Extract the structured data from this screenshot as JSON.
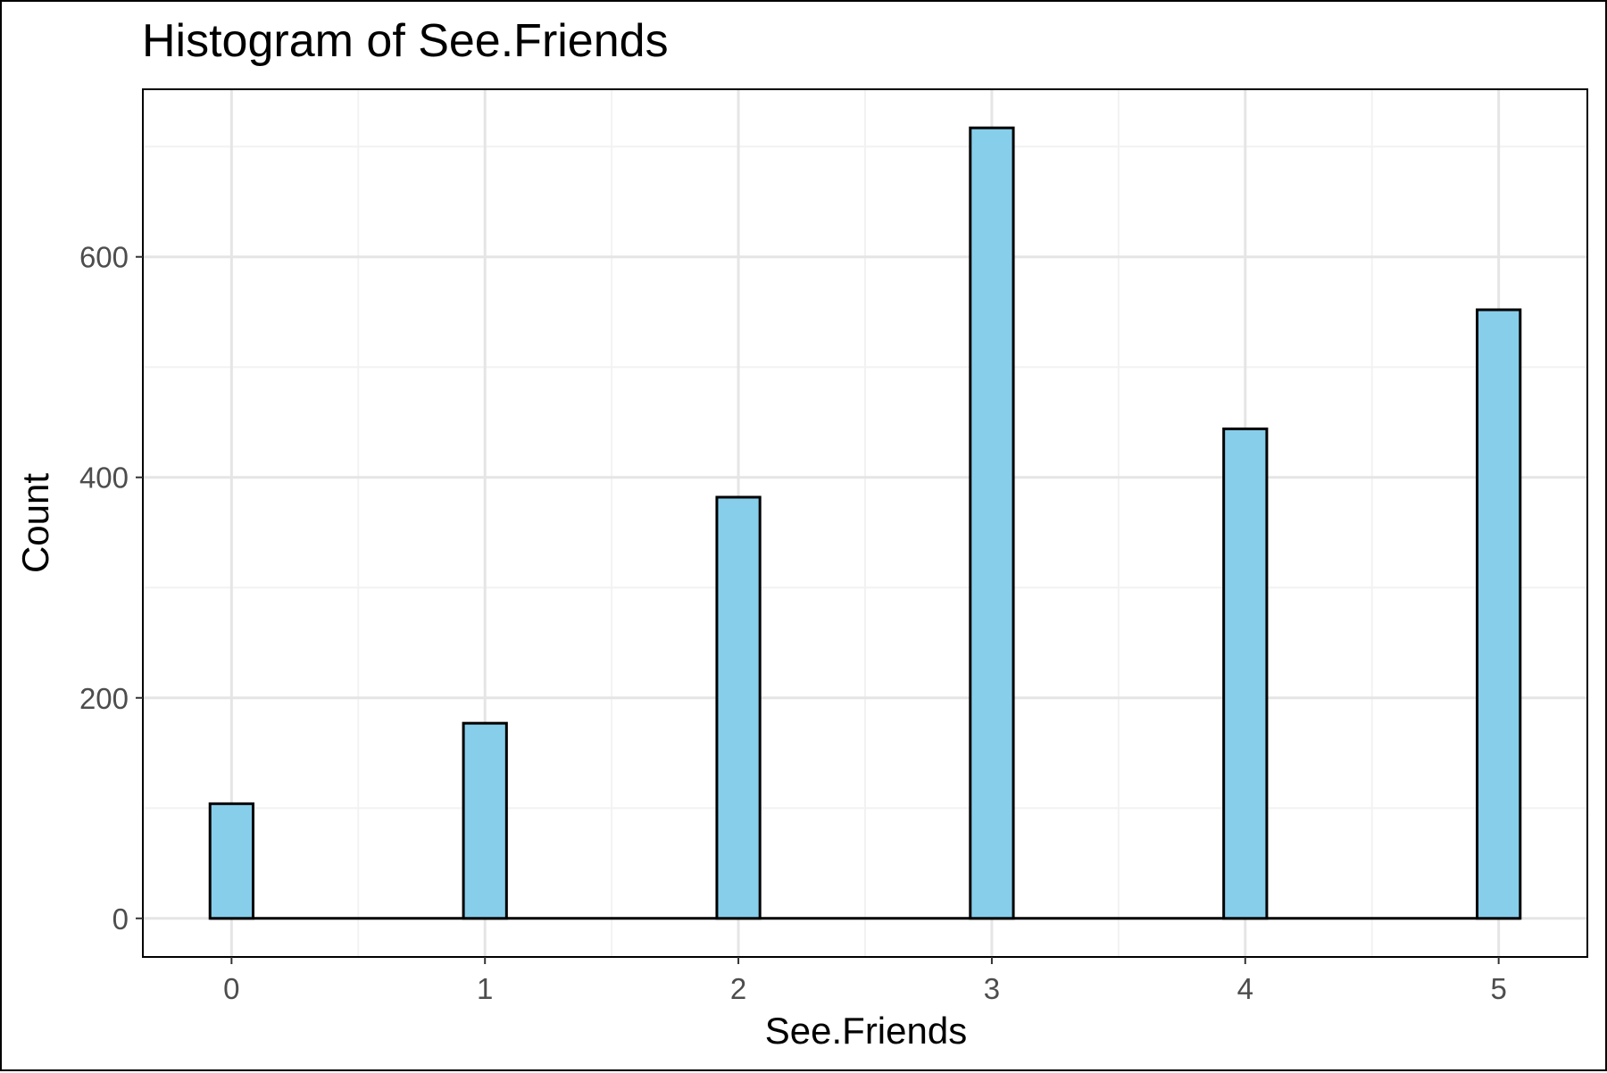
{
  "chart_data": {
    "type": "bar",
    "title": "Histogram of See.Friends",
    "xlabel": "See.Friends",
    "ylabel": "Count",
    "categories": [
      "0",
      "1",
      "2",
      "3",
      "4",
      "5"
    ],
    "x": [
      0,
      1,
      2,
      3,
      4,
      5
    ],
    "values": [
      104,
      177,
      382,
      717,
      444,
      552
    ],
    "xlim": [
      -0.35,
      5.35
    ],
    "ylim": [
      -35,
      752
    ],
    "xticks": [
      0,
      1,
      2,
      3,
      4,
      5
    ],
    "yticks": [
      0,
      200,
      400,
      600
    ],
    "grid": true,
    "colors": {
      "bar_fill": "#87CEEB",
      "bar_outline": "#000000",
      "grid_major": "#e5e5e5",
      "grid_minor": "#f2f2f2",
      "panel_border": "#000000"
    }
  }
}
